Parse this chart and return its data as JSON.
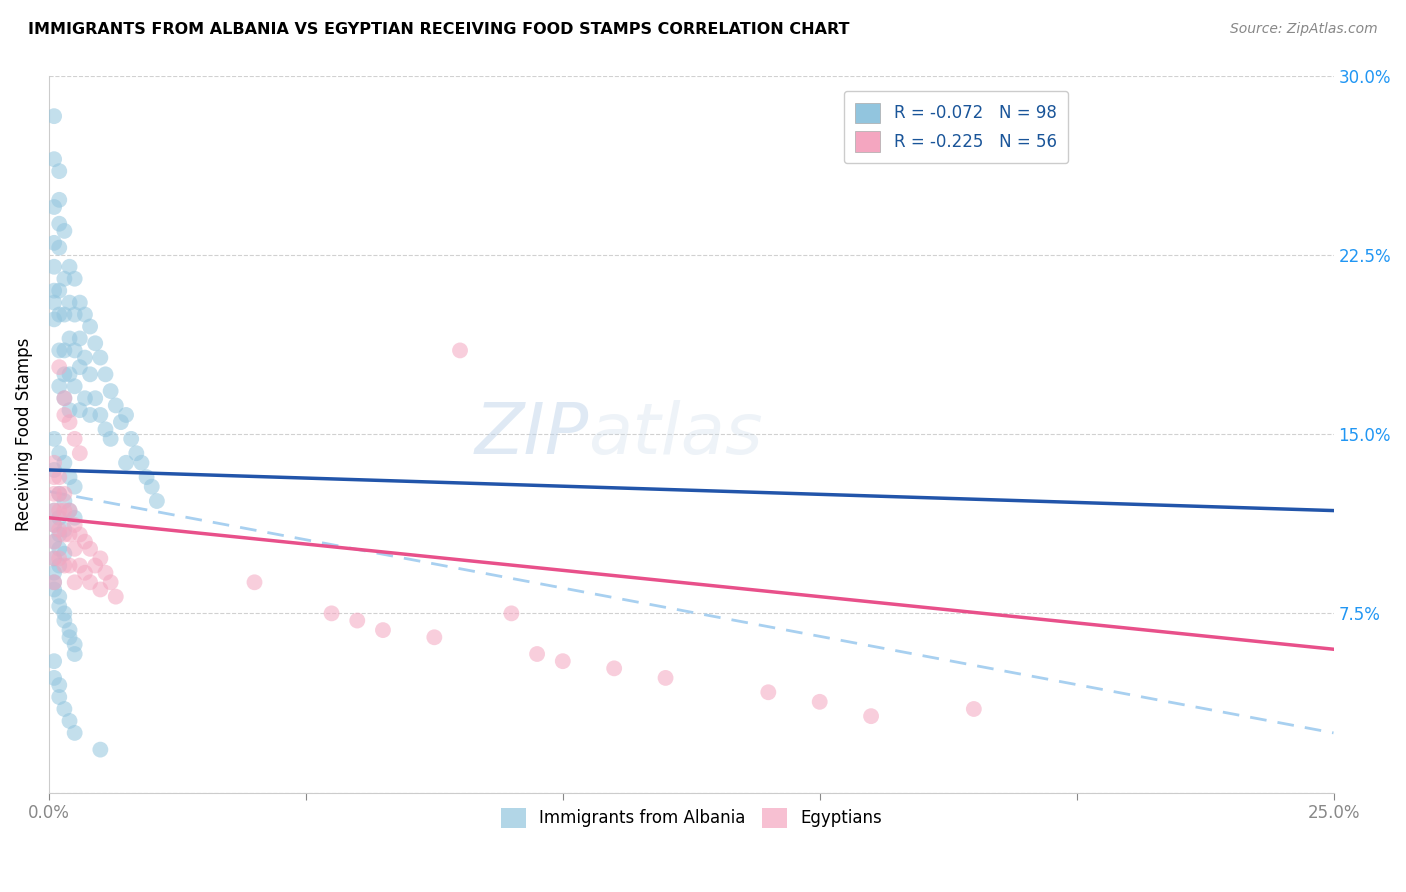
{
  "title": "IMMIGRANTS FROM ALBANIA VS EGYPTIAN RECEIVING FOOD STAMPS CORRELATION CHART",
  "source": "Source: ZipAtlas.com",
  "ylabel": "Receiving Food Stamps",
  "R_albania": "-0.072",
  "N_albania": "98",
  "R_egypt": "-0.225",
  "N_egypt": "56",
  "color_albania": "#92c5de",
  "color_egypt": "#f4a6c0",
  "line_color_albania": "#2255aa",
  "line_color_egypt": "#e8508a",
  "line_color_dashed": "#a8d0f0",
  "legend_albania": "Immigrants from Albania",
  "legend_egypt": "Egyptians",
  "xlim": [
    0.0,
    0.25
  ],
  "ylim": [
    0.0,
    0.3
  ],
  "albania_x": [
    0.001,
    0.001,
    0.001,
    0.001,
    0.001,
    0.001,
    0.001,
    0.001,
    0.001,
    0.002,
    0.002,
    0.002,
    0.002,
    0.002,
    0.002,
    0.002,
    0.002,
    0.003,
    0.003,
    0.003,
    0.003,
    0.003,
    0.003,
    0.004,
    0.004,
    0.004,
    0.004,
    0.004,
    0.005,
    0.005,
    0.005,
    0.005,
    0.006,
    0.006,
    0.006,
    0.006,
    0.007,
    0.007,
    0.007,
    0.008,
    0.008,
    0.008,
    0.009,
    0.009,
    0.01,
    0.01,
    0.011,
    0.011,
    0.012,
    0.012,
    0.013,
    0.014,
    0.015,
    0.015,
    0.016,
    0.017,
    0.018,
    0.019,
    0.02,
    0.021,
    0.001,
    0.002,
    0.003,
    0.004,
    0.005,
    0.002,
    0.003,
    0.004,
    0.005,
    0.001,
    0.002,
    0.001,
    0.003,
    0.002,
    0.001,
    0.002,
    0.003,
    0.001,
    0.002,
    0.001,
    0.001,
    0.001,
    0.002,
    0.002,
    0.003,
    0.003,
    0.004,
    0.004,
    0.005,
    0.005,
    0.001,
    0.001,
    0.002,
    0.002,
    0.003,
    0.004,
    0.005,
    0.01
  ],
  "albania_y": [
    0.283,
    0.265,
    0.245,
    0.23,
    0.22,
    0.21,
    0.205,
    0.198,
    0.135,
    0.26,
    0.248,
    0.238,
    0.228,
    0.21,
    0.2,
    0.185,
    0.17,
    0.235,
    0.215,
    0.2,
    0.185,
    0.175,
    0.165,
    0.22,
    0.205,
    0.19,
    0.175,
    0.16,
    0.215,
    0.2,
    0.185,
    0.17,
    0.205,
    0.19,
    0.178,
    0.16,
    0.2,
    0.182,
    0.165,
    0.195,
    0.175,
    0.158,
    0.188,
    0.165,
    0.182,
    0.158,
    0.175,
    0.152,
    0.168,
    0.148,
    0.162,
    0.155,
    0.158,
    0.138,
    0.148,
    0.142,
    0.138,
    0.132,
    0.128,
    0.122,
    0.148,
    0.142,
    0.138,
    0.132,
    0.128,
    0.125,
    0.122,
    0.118,
    0.115,
    0.118,
    0.115,
    0.112,
    0.11,
    0.108,
    0.105,
    0.102,
    0.1,
    0.098,
    0.095,
    0.092,
    0.088,
    0.085,
    0.082,
    0.078,
    0.075,
    0.072,
    0.068,
    0.065,
    0.062,
    0.058,
    0.055,
    0.048,
    0.045,
    0.04,
    0.035,
    0.03,
    0.025,
    0.018
  ],
  "egypt_x": [
    0.001,
    0.001,
    0.001,
    0.001,
    0.001,
    0.001,
    0.001,
    0.001,
    0.002,
    0.002,
    0.002,
    0.002,
    0.002,
    0.003,
    0.003,
    0.003,
    0.003,
    0.004,
    0.004,
    0.004,
    0.005,
    0.005,
    0.005,
    0.006,
    0.006,
    0.007,
    0.007,
    0.008,
    0.008,
    0.009,
    0.01,
    0.01,
    0.011,
    0.012,
    0.013,
    0.04,
    0.055,
    0.06,
    0.065,
    0.075,
    0.08,
    0.09,
    0.095,
    0.1,
    0.11,
    0.12,
    0.14,
    0.15,
    0.16,
    0.18,
    0.003,
    0.004,
    0.005,
    0.006,
    0.002,
    0.003
  ],
  "egypt_y": [
    0.138,
    0.132,
    0.125,
    0.118,
    0.112,
    0.105,
    0.098,
    0.088,
    0.132,
    0.125,
    0.118,
    0.11,
    0.098,
    0.125,
    0.118,
    0.108,
    0.095,
    0.118,
    0.108,
    0.095,
    0.112,
    0.102,
    0.088,
    0.108,
    0.095,
    0.105,
    0.092,
    0.102,
    0.088,
    0.095,
    0.098,
    0.085,
    0.092,
    0.088,
    0.082,
    0.088,
    0.075,
    0.072,
    0.068,
    0.065,
    0.185,
    0.075,
    0.058,
    0.055,
    0.052,
    0.048,
    0.042,
    0.038,
    0.032,
    0.035,
    0.165,
    0.155,
    0.148,
    0.142,
    0.178,
    0.158
  ]
}
